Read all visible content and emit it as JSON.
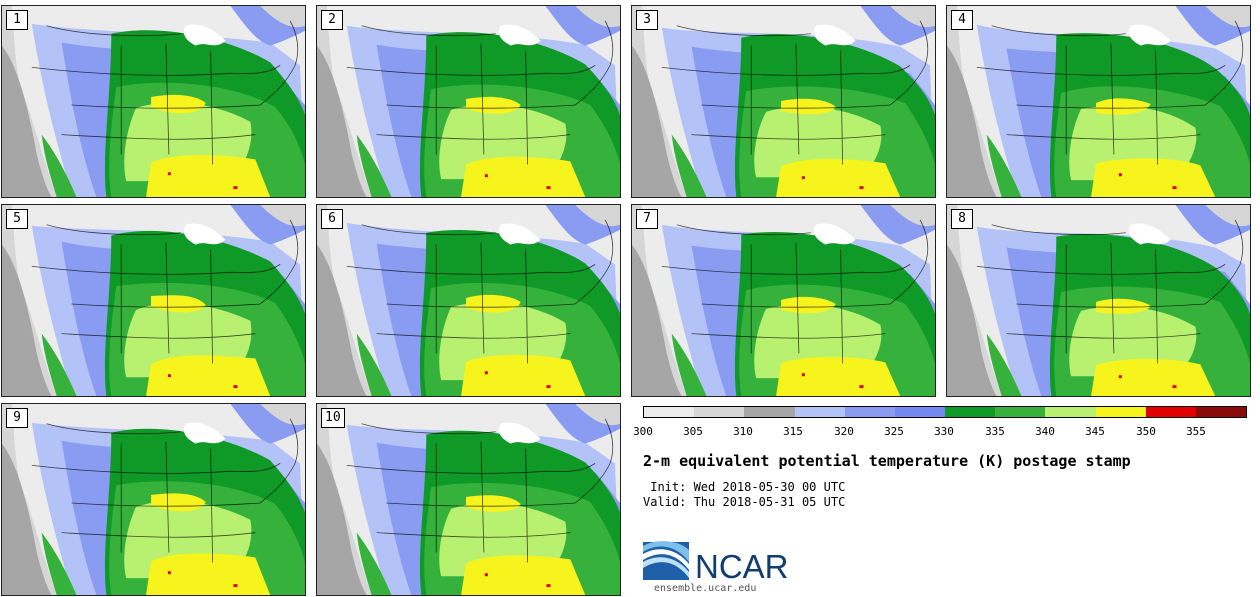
{
  "panels": [
    {
      "label": "1"
    },
    {
      "label": "2"
    },
    {
      "label": "3"
    },
    {
      "label": "4"
    },
    {
      "label": "5"
    },
    {
      "label": "6"
    },
    {
      "label": "7"
    },
    {
      "label": "8"
    },
    {
      "label": "9"
    },
    {
      "label": "10"
    }
  ],
  "colorbar": {
    "colors": [
      "#ececec",
      "#d6d6d6",
      "#a6a6a6",
      "#b4c3f7",
      "#8a9cf2",
      "#7388f0",
      "#0f9a28",
      "#36b23c",
      "#b8f070",
      "#f7f31c",
      "#e00000",
      "#8b0a0a"
    ],
    "ticks": [
      "300",
      "305",
      "310",
      "315",
      "320",
      "325",
      "330",
      "335",
      "340",
      "345",
      "350",
      "355"
    ]
  },
  "title": "2-m equivalent potential temperature (K) postage stamp",
  "init": " Init: Wed 2018-05-30 00 UTC",
  "valid": "Valid: Thu 2018-05-31 05 UTC",
  "logo": {
    "text": "NCAR",
    "color": "#0f3d6e",
    "accent": "#2b8acb"
  },
  "site": "ensemble.ucar.edu"
}
